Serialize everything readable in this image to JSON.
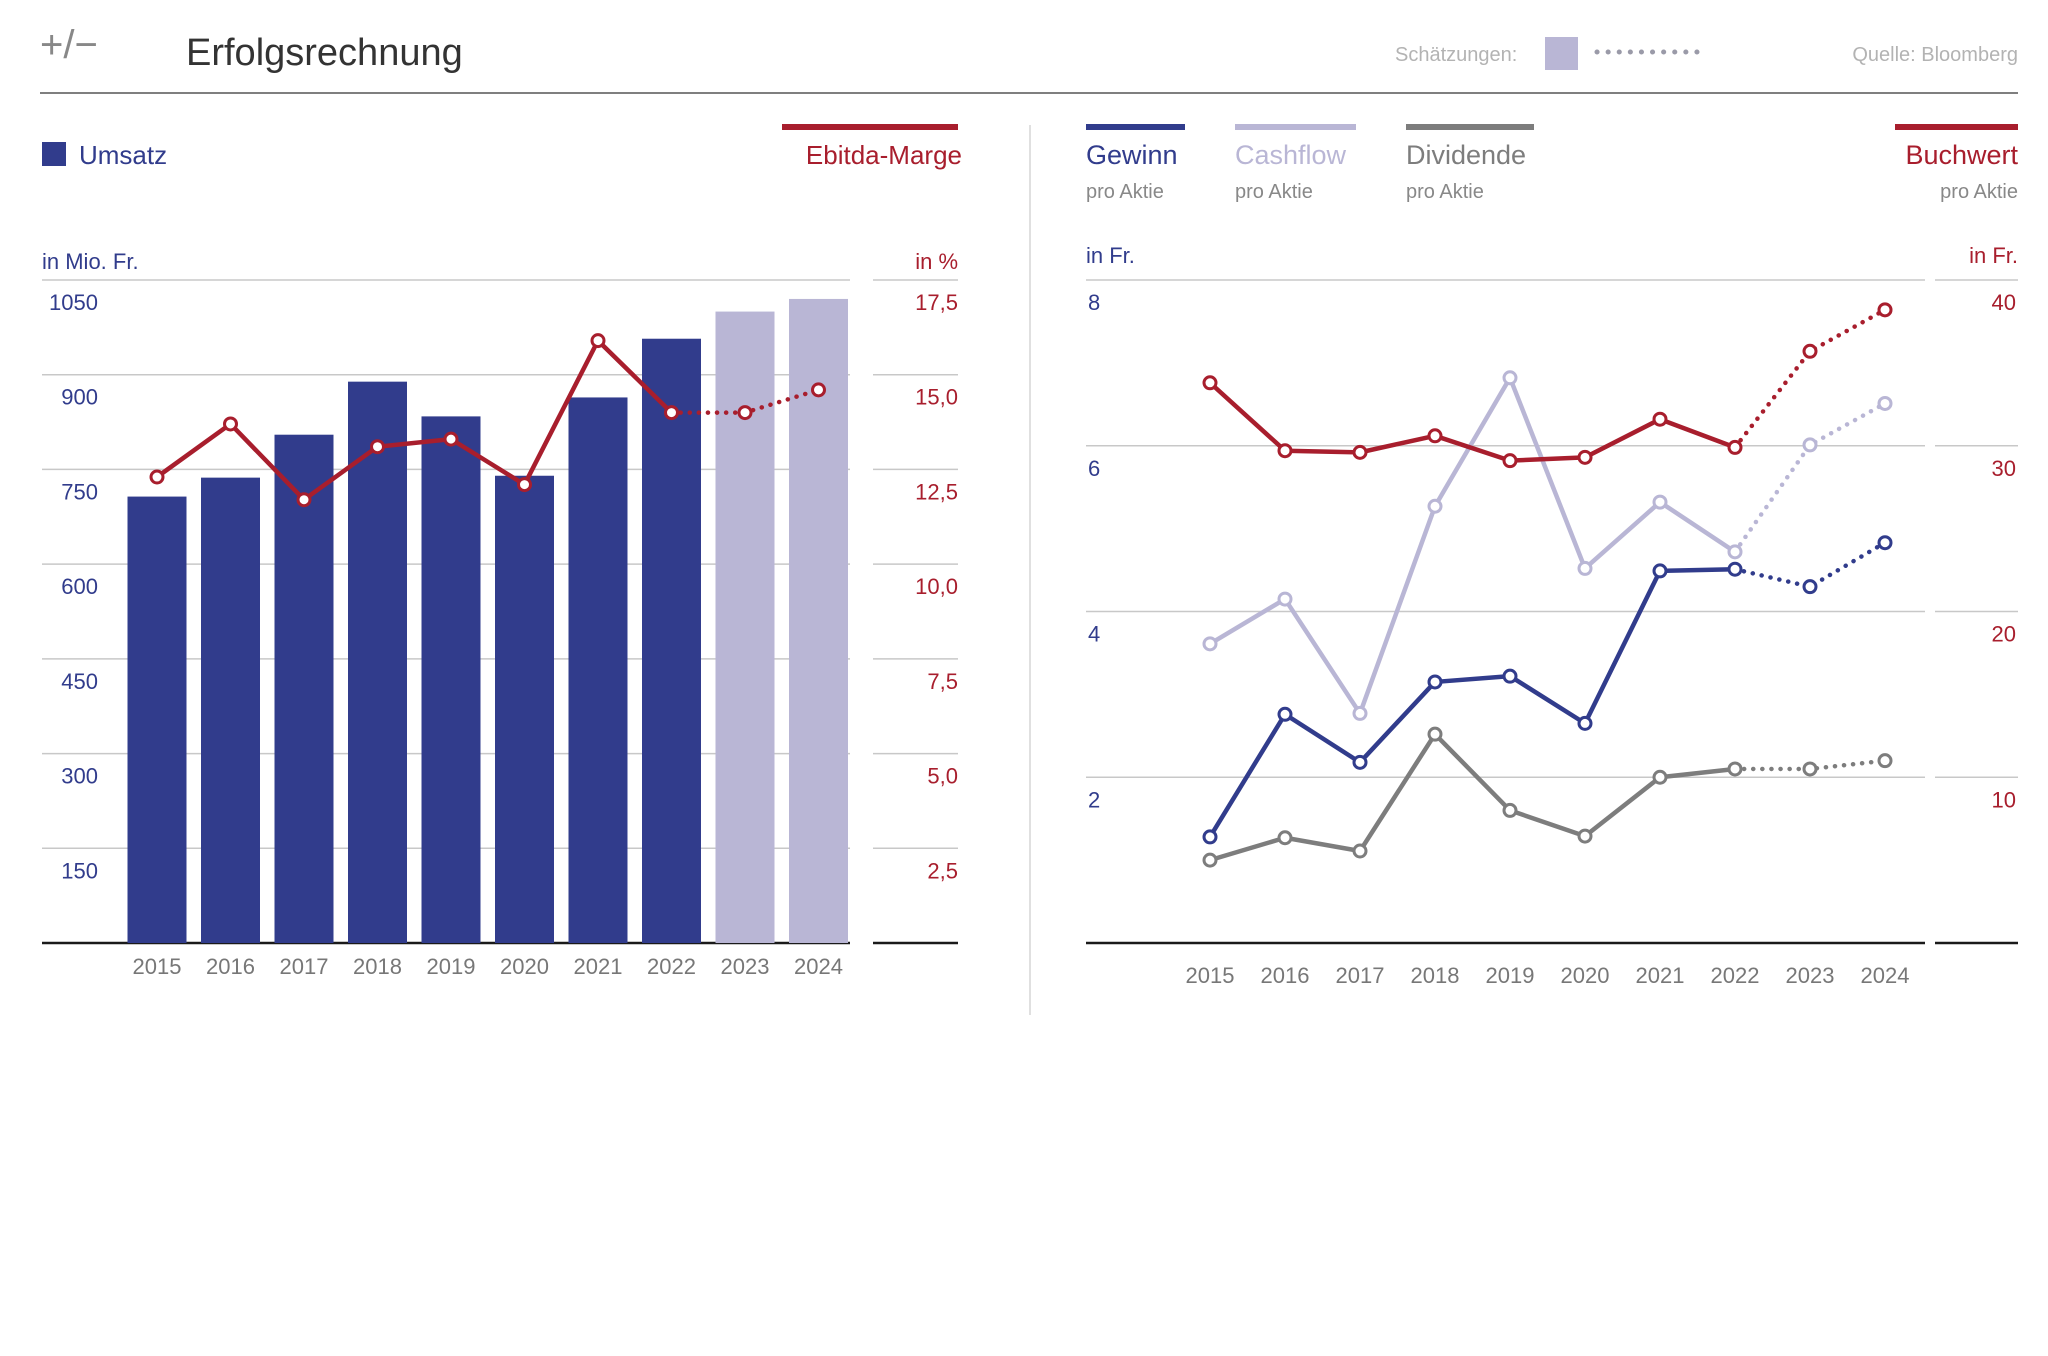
{
  "header": {
    "logo": "+/−",
    "title": "Erfolgsrechnung",
    "estimates_label": "Schätzungen:",
    "source": "Quelle: Bloomberg"
  },
  "colors": {
    "navy": "#313c8c",
    "lavender": "#b9b6d5",
    "red": "#a81e2d",
    "gray": "#7d7d7d",
    "grid": "#c8c8c8",
    "axis": "#1a1a1a",
    "tick": "#777777",
    "header_muted": "#b3b3b3"
  },
  "chart_data": [
    {
      "type": "bar",
      "categories": [
        "2015",
        "2016",
        "2017",
        "2018",
        "2019",
        "2020",
        "2021",
        "2022",
        "2023",
        "2024"
      ],
      "estimate_from_index": 8,
      "left_axis": {
        "label": "in Mio. Fr.",
        "ticks": [
          "150",
          "300",
          "450",
          "600",
          "750",
          "900",
          "1050"
        ],
        "ylim": [
          0,
          1050
        ]
      },
      "right_axis": {
        "label": "in %",
        "ticks": [
          "2,5",
          "5,0",
          "7,5",
          "10,0",
          "12,5",
          "15,0",
          "17,5"
        ],
        "ylim": [
          0,
          17.5
        ]
      },
      "series": [
        {
          "name": "Umsatz",
          "axis": "left",
          "values": [
            707,
            737,
            805,
            889,
            834,
            740,
            864,
            957,
            1000,
            1020
          ]
        },
        {
          "name": "Ebitda-Marge",
          "axis": "right",
          "type": "line",
          "values": [
            12.3,
            13.7,
            11.7,
            13.1,
            13.3,
            12.1,
            15.9,
            14.0,
            14.0,
            14.6
          ]
        }
      ],
      "grid": true,
      "legend_position": "top"
    },
    {
      "type": "line",
      "categories": [
        "2015",
        "2016",
        "2017",
        "2018",
        "2019",
        "2020",
        "2021",
        "2022",
        "2023",
        "2024"
      ],
      "estimate_from_index": 7,
      "left_axis": {
        "label": "in Fr.",
        "ticks": [
          "2",
          "4",
          "6",
          "8"
        ],
        "ylim": [
          0,
          8
        ]
      },
      "right_axis": {
        "label": "in Fr.",
        "ticks": [
          "10",
          "20",
          "30",
          "40"
        ],
        "ylim": [
          0,
          40
        ]
      },
      "series": [
        {
          "name": "Gewinn",
          "sub": "pro Aktie",
          "axis": "left",
          "values": [
            1.28,
            2.76,
            2.18,
            3.15,
            3.22,
            2.65,
            4.49,
            4.51,
            4.3,
            4.83
          ]
        },
        {
          "name": "Cashflow",
          "sub": "pro Aktie",
          "axis": "left",
          "values": [
            3.61,
            4.15,
            2.77,
            5.27,
            6.82,
            4.52,
            5.32,
            4.72,
            6.01,
            6.51
          ]
        },
        {
          "name": "Dividende",
          "sub": "pro Aktie",
          "axis": "left",
          "values": [
            1.0,
            1.27,
            1.11,
            2.52,
            1.6,
            1.29,
            2.0,
            2.1,
            2.1,
            2.2
          ]
        },
        {
          "name": "Buchwert",
          "sub": "pro Aktie",
          "axis": "right",
          "values": [
            33.8,
            29.7,
            29.6,
            30.6,
            29.1,
            29.3,
            31.6,
            29.9,
            35.7,
            38.2
          ]
        }
      ],
      "grid": true,
      "legend_position": "top"
    }
  ]
}
